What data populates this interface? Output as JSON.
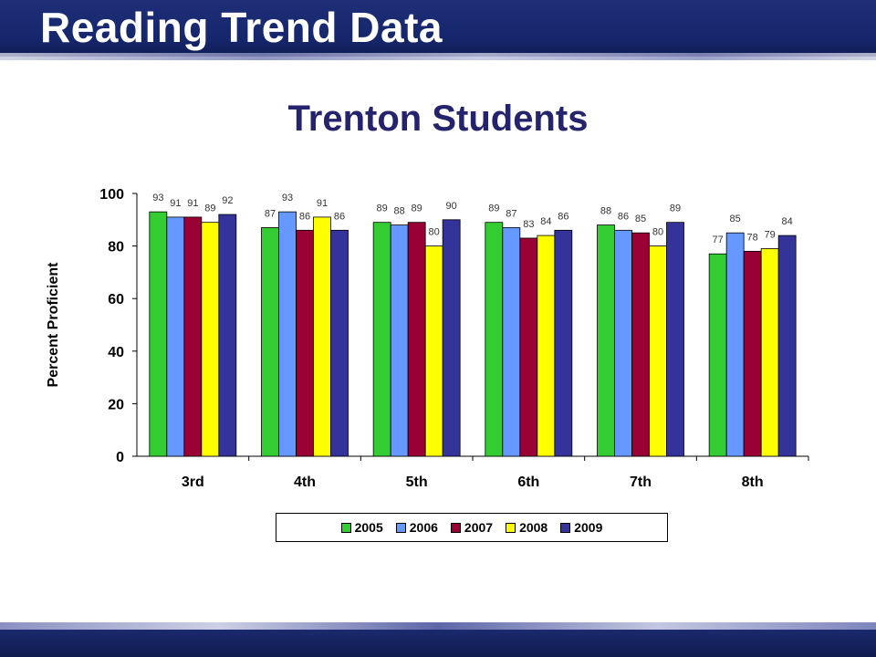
{
  "slide": {
    "title": "Reading Trend Data"
  },
  "chart_data": {
    "type": "bar",
    "title": "Trenton Students",
    "xlabel": "",
    "ylabel": "Percent Proficient",
    "ylim": [
      0,
      100
    ],
    "yticks": [
      0,
      20,
      40,
      60,
      80,
      100
    ],
    "grid": false,
    "legend_position": "bottom",
    "categories": [
      "3rd",
      "4th",
      "5th",
      "6th",
      "7th",
      "8th"
    ],
    "series": [
      {
        "name": "2005",
        "color": "#33cc33",
        "values": [
          93,
          87,
          89,
          89,
          88,
          77
        ]
      },
      {
        "name": "2006",
        "color": "#6699ff",
        "values": [
          91,
          93,
          88,
          87,
          86,
          85
        ]
      },
      {
        "name": "2007",
        "color": "#990033",
        "values": [
          91,
          86,
          89,
          83,
          85,
          78
        ]
      },
      {
        "name": "2008",
        "color": "#ffff00",
        "values": [
          89,
          91,
          80,
          84,
          80,
          79
        ]
      },
      {
        "name": "2009",
        "color": "#333399",
        "values": [
          92,
          86,
          90,
          86,
          89,
          84
        ]
      }
    ]
  }
}
